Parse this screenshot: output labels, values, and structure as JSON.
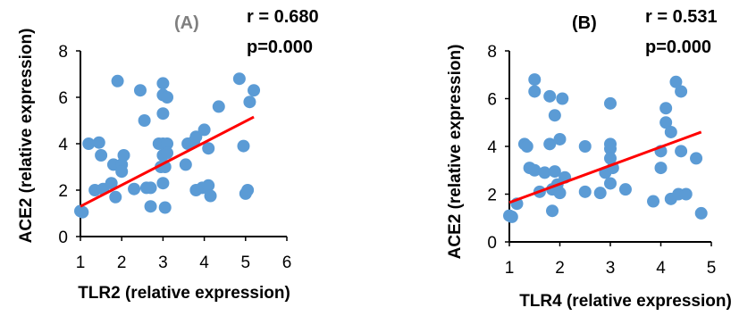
{
  "chart_data": [
    {
      "type": "scatter",
      "panel_label": "(A)",
      "panel_label_color": "#7f7f7f",
      "stat_r": "r = 0.680",
      "stat_p": "p=0.000",
      "xlabel": "TLR2 (relative expression)",
      "ylabel": "ACE2 (relative expression)",
      "xlim": [
        1,
        6
      ],
      "ylim": [
        0,
        8
      ],
      "xticks": [
        "1",
        "2",
        "3",
        "4",
        "5",
        "6"
      ],
      "yticks": [
        "0",
        "2",
        "4",
        "6",
        "8"
      ],
      "marker_color": "#5b9bd5",
      "trendline_color": "#ff0000",
      "trendline": [
        [
          1,
          1.3
        ],
        [
          5.2,
          5.15
        ]
      ],
      "grid": false,
      "points": [
        [
          1.0,
          1.1
        ],
        [
          1.05,
          1.05
        ],
        [
          1.2,
          4.0
        ],
        [
          1.35,
          2.0
        ],
        [
          1.45,
          4.05
        ],
        [
          1.5,
          3.5
        ],
        [
          1.55,
          2.05
        ],
        [
          1.75,
          2.3
        ],
        [
          1.8,
          3.1
        ],
        [
          1.85,
          1.7
        ],
        [
          1.9,
          6.7
        ],
        [
          2.0,
          3.1
        ],
        [
          2.0,
          2.8
        ],
        [
          2.05,
          3.5
        ],
        [
          2.3,
          2.05
        ],
        [
          2.45,
          6.3
        ],
        [
          2.55,
          5.0
        ],
        [
          2.6,
          2.1
        ],
        [
          2.7,
          2.1
        ],
        [
          2.7,
          1.3
        ],
        [
          2.9,
          4.0
        ],
        [
          2.95,
          3.0
        ],
        [
          3.0,
          6.6
        ],
        [
          3.0,
          6.1
        ],
        [
          3.0,
          5.3
        ],
        [
          3.0,
          4.0
        ],
        [
          3.0,
          3.5
        ],
        [
          3.0,
          2.3
        ],
        [
          3.05,
          1.25
        ],
        [
          3.05,
          3.0
        ],
        [
          3.1,
          6.0
        ],
        [
          3.1,
          4.0
        ],
        [
          3.1,
          3.6
        ],
        [
          3.55,
          3.1
        ],
        [
          3.6,
          4.0
        ],
        [
          3.75,
          4.1
        ],
        [
          3.8,
          4.3
        ],
        [
          3.8,
          2.0
        ],
        [
          3.95,
          2.1
        ],
        [
          4.0,
          4.6
        ],
        [
          4.1,
          3.8
        ],
        [
          4.1,
          2.2
        ],
        [
          4.15,
          1.75
        ],
        [
          4.35,
          5.6
        ],
        [
          4.85,
          6.8
        ],
        [
          4.95,
          3.9
        ],
        [
          5.0,
          1.85
        ],
        [
          5.05,
          2.0
        ],
        [
          5.1,
          5.8
        ],
        [
          5.2,
          6.3
        ]
      ]
    },
    {
      "type": "scatter",
      "panel_label": "(B)",
      "panel_label_color": "#000000",
      "stat_r": "r = 0.531",
      "stat_p": "p=0.000",
      "xlabel": "TLR4 (relative expression)",
      "ylabel": "ACE2 (relative expression)",
      "xlim": [
        1,
        5
      ],
      "ylim": [
        0,
        8
      ],
      "xticks": [
        "1",
        "2",
        "3",
        "4",
        "5"
      ],
      "yticks": [
        "0",
        "2",
        "4",
        "6",
        "8"
      ],
      "marker_color": "#5b9bd5",
      "trendline_color": "#ff0000",
      "trendline": [
        [
          1,
          1.65
        ],
        [
          4.8,
          4.6
        ]
      ],
      "grid": false,
      "points": [
        [
          1.0,
          1.1
        ],
        [
          1.05,
          1.05
        ],
        [
          1.15,
          1.6
        ],
        [
          1.3,
          4.1
        ],
        [
          1.35,
          4.0
        ],
        [
          1.4,
          3.1
        ],
        [
          1.5,
          6.8
        ],
        [
          1.5,
          6.3
        ],
        [
          1.5,
          3.0
        ],
        [
          1.6,
          2.1
        ],
        [
          1.7,
          2.9
        ],
        [
          1.8,
          4.1
        ],
        [
          1.8,
          6.1
        ],
        [
          1.85,
          2.2
        ],
        [
          1.85,
          1.3
        ],
        [
          1.9,
          5.3
        ],
        [
          1.9,
          2.95
        ],
        [
          1.95,
          2.4
        ],
        [
          2.0,
          4.3
        ],
        [
          2.0,
          2.05
        ],
        [
          2.05,
          6.0
        ],
        [
          2.1,
          2.7
        ],
        [
          2.5,
          4.0
        ],
        [
          2.5,
          2.1
        ],
        [
          2.8,
          2.05
        ],
        [
          2.9,
          2.9
        ],
        [
          3.0,
          5.8
        ],
        [
          3.0,
          4.1
        ],
        [
          3.0,
          3.9
        ],
        [
          3.0,
          3.5
        ],
        [
          3.0,
          2.45
        ],
        [
          3.05,
          3.1
        ],
        [
          3.3,
          2.2
        ],
        [
          3.85,
          1.7
        ],
        [
          4.0,
          3.8
        ],
        [
          4.0,
          3.1
        ],
        [
          4.1,
          5.6
        ],
        [
          4.1,
          5.0
        ],
        [
          4.2,
          4.6
        ],
        [
          4.2,
          1.8
        ],
        [
          4.3,
          6.7
        ],
        [
          4.35,
          2.0
        ],
        [
          4.4,
          6.3
        ],
        [
          4.4,
          3.8
        ],
        [
          4.5,
          2.0
        ],
        [
          4.7,
          3.5
        ],
        [
          4.8,
          1.2
        ]
      ]
    }
  ]
}
